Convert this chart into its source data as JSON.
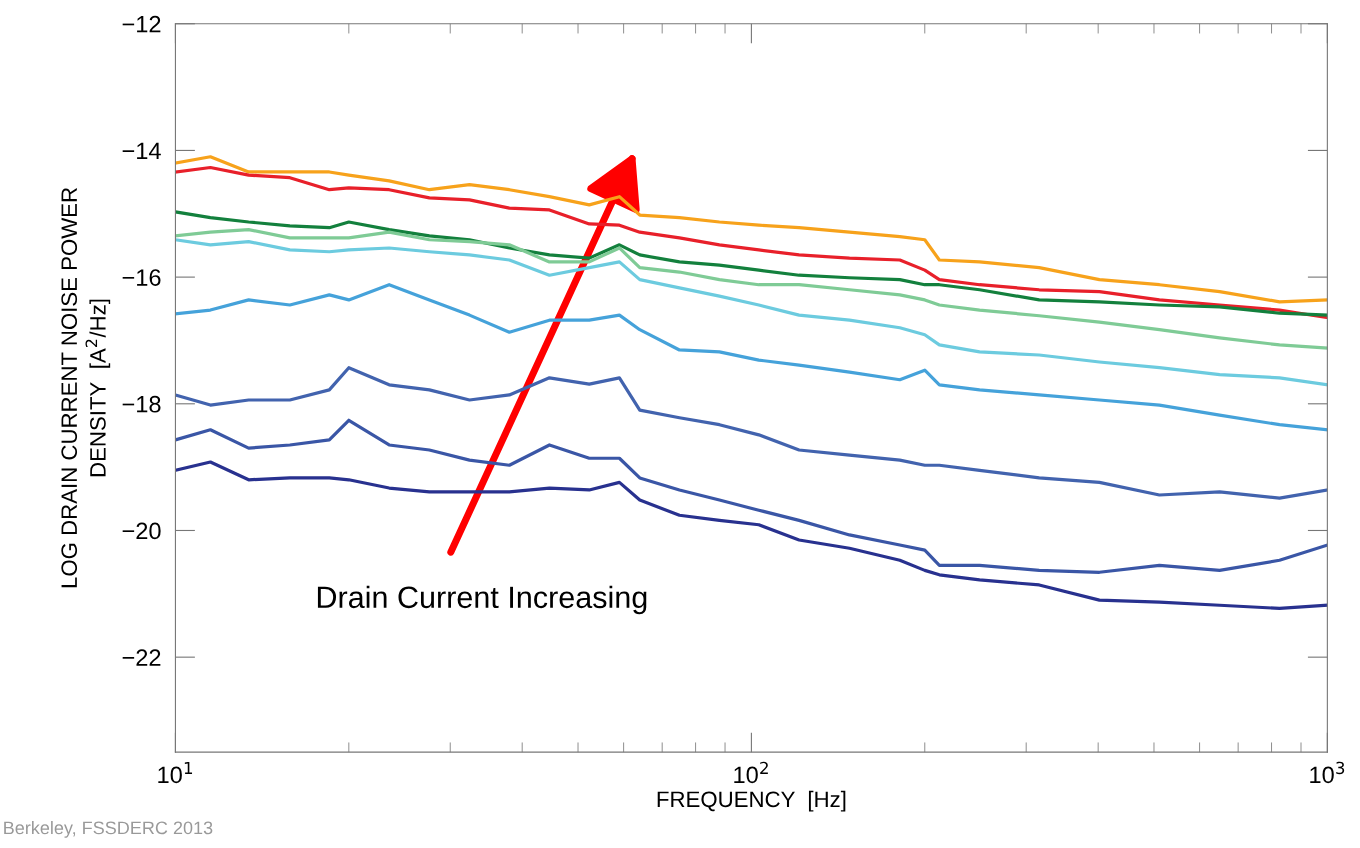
{
  "chart_data": {
    "type": "line",
    "log": "x",
    "xlabel": "FREQUENCY  [Hz]",
    "ylabel": "LOG DRAIN CURRENT NOISE POWER\nDENSITY  [A$^{2}$/Hz]",
    "annotations": [
      "Drain Current Increasing",
      "Berkeley, FSSDERC 2013"
    ],
    "xlim": [
      10,
      1000
    ],
    "ylim": [
      -23.5,
      -12
    ],
    "xticks": [
      {
        "value": 10,
        "label": "10$^{1}$"
      },
      {
        "value": 100,
        "label": "10$^{2}$"
      },
      {
        "value": 1000,
        "label": "10$^{3}$"
      }
    ],
    "yticks": [
      -12,
      -14,
      -16,
      -18,
      -20,
      -22
    ],
    "x": [
      10,
      11.5,
      13.4,
      15.8,
      18.5,
      20,
      23.5,
      27.6,
      32.4,
      38,
      44.6,
      52.3,
      59,
      64,
      75,
      88,
      103,
      121,
      148,
      181,
      200,
      212,
      249,
      316,
      402,
      511,
      650,
      826,
      1000
    ],
    "series": [
      {
        "color": "#f7a21b",
        "values": [
          -14.2,
          -14.1,
          -14.34,
          -14.34,
          -14.34,
          -14.39,
          -14.48,
          -14.62,
          -14.54,
          -14.62,
          -14.73,
          -14.86,
          -14.73,
          -15.02,
          -15.06,
          -15.13,
          -15.18,
          -15.22,
          -15.29,
          -15.36,
          -15.41,
          -15.73,
          -15.76,
          -15.85,
          -16.04,
          -16.12,
          -16.23,
          -16.39,
          -16.36
        ]
      },
      {
        "color": "#e8202a",
        "values": [
          -14.34,
          -14.27,
          -14.39,
          -14.43,
          -14.62,
          -14.59,
          -14.62,
          -14.75,
          -14.78,
          -14.91,
          -14.94,
          -15.16,
          -15.18,
          -15.29,
          -15.38,
          -15.49,
          -15.57,
          -15.65,
          -15.7,
          -15.73,
          -15.89,
          -16.04,
          -16.12,
          -16.2,
          -16.23,
          -16.36,
          -16.44,
          -16.52,
          -16.64
        ]
      },
      {
        "color": "#13803d",
        "values": [
          -14.97,
          -15.06,
          -15.13,
          -15.19,
          -15.22,
          -15.13,
          -15.25,
          -15.35,
          -15.41,
          -15.54,
          -15.65,
          -15.7,
          -15.49,
          -15.65,
          -15.76,
          -15.81,
          -15.89,
          -15.97,
          -16.01,
          -16.04,
          -16.12,
          -16.12,
          -16.2,
          -16.36,
          -16.39,
          -16.44,
          -16.47,
          -16.57,
          -16.6
        ]
      },
      {
        "color": "#7fcb96",
        "values": [
          -15.35,
          -15.29,
          -15.25,
          -15.38,
          -15.38,
          -15.38,
          -15.29,
          -15.41,
          -15.44,
          -15.49,
          -15.76,
          -15.76,
          -15.54,
          -15.85,
          -15.92,
          -16.04,
          -16.12,
          -16.12,
          -16.2,
          -16.28,
          -16.36,
          -16.44,
          -16.52,
          -16.61,
          -16.71,
          -16.83,
          -16.96,
          -17.07,
          -17.12
        ]
      },
      {
        "color": "#6ccbdf",
        "values": [
          -15.41,
          -15.49,
          -15.44,
          -15.57,
          -15.6,
          -15.57,
          -15.54,
          -15.6,
          -15.65,
          -15.73,
          -15.97,
          -15.85,
          -15.76,
          -16.04,
          -16.17,
          -16.3,
          -16.44,
          -16.6,
          -16.68,
          -16.8,
          -16.91,
          -17.07,
          -17.18,
          -17.23,
          -17.34,
          -17.43,
          -17.54,
          -17.59,
          -17.7
        ]
      },
      {
        "color": "#45a2da",
        "values": [
          -16.58,
          -16.52,
          -16.36,
          -16.44,
          -16.28,
          -16.36,
          -16.12,
          -16.36,
          -16.6,
          -16.87,
          -16.68,
          -16.68,
          -16.6,
          -16.83,
          -17.15,
          -17.18,
          -17.31,
          -17.39,
          -17.5,
          -17.62,
          -17.47,
          -17.7,
          -17.78,
          -17.86,
          -17.94,
          -18.02,
          -18.18,
          -18.33,
          -18.41
        ]
      },
      {
        "color": "#4263ae",
        "values": [
          -17.86,
          -18.02,
          -17.94,
          -17.94,
          -17.78,
          -17.43,
          -17.7,
          -17.78,
          -17.94,
          -17.86,
          -17.59,
          -17.69,
          -17.59,
          -18.1,
          -18.22,
          -18.33,
          -18.49,
          -18.73,
          -18.81,
          -18.89,
          -18.97,
          -18.97,
          -19.05,
          -19.17,
          -19.24,
          -19.44,
          -19.39,
          -19.49,
          -19.36
        ]
      },
      {
        "color": "#3a56a6",
        "values": [
          -18.57,
          -18.41,
          -18.7,
          -18.65,
          -18.57,
          -18.26,
          -18.65,
          -18.73,
          -18.89,
          -18.97,
          -18.65,
          -18.86,
          -18.86,
          -19.17,
          -19.36,
          -19.52,
          -19.68,
          -19.84,
          -20.07,
          -20.23,
          -20.31,
          -20.55,
          -20.55,
          -20.63,
          -20.66,
          -20.55,
          -20.63,
          -20.47,
          -20.23
        ]
      },
      {
        "color": "#28318f",
        "values": [
          -19.05,
          -18.92,
          -19.2,
          -19.17,
          -19.17,
          -19.2,
          -19.33,
          -19.39,
          -19.39,
          -19.39,
          -19.33,
          -19.36,
          -19.24,
          -19.52,
          -19.76,
          -19.84,
          -19.91,
          -20.15,
          -20.28,
          -20.47,
          -20.63,
          -20.7,
          -20.78,
          -20.86,
          -21.1,
          -21.13,
          -21.18,
          -21.23,
          -21.18
        ]
      }
    ]
  }
}
